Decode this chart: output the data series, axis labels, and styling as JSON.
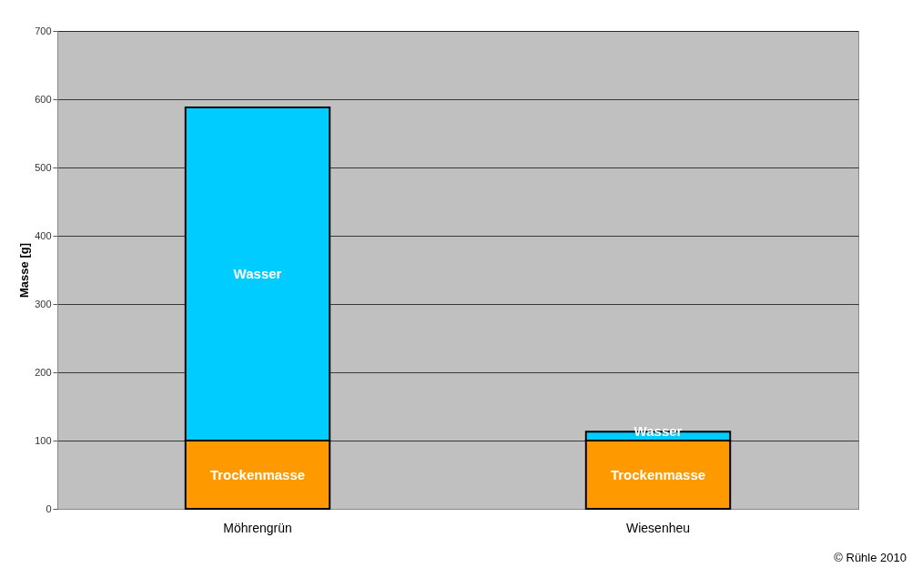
{
  "chart_data": {
    "type": "bar",
    "stacked": true,
    "ylabel": "Masse [g]",
    "categories": [
      "Möhrengrün",
      "Wiesenheu"
    ],
    "series": [
      {
        "name": "Trockenmasse",
        "color": "#ff9900",
        "values": [
          100,
          100
        ]
      },
      {
        "name": "Wasser",
        "color": "#00ccff",
        "values": [
          488,
          13
        ]
      }
    ],
    "ylim": [
      0,
      700
    ],
    "yticks": [
      0,
      100,
      200,
      300,
      400,
      500,
      600,
      700
    ],
    "grid": "y",
    "annotations": [
      "© Rühle 2010"
    ]
  }
}
